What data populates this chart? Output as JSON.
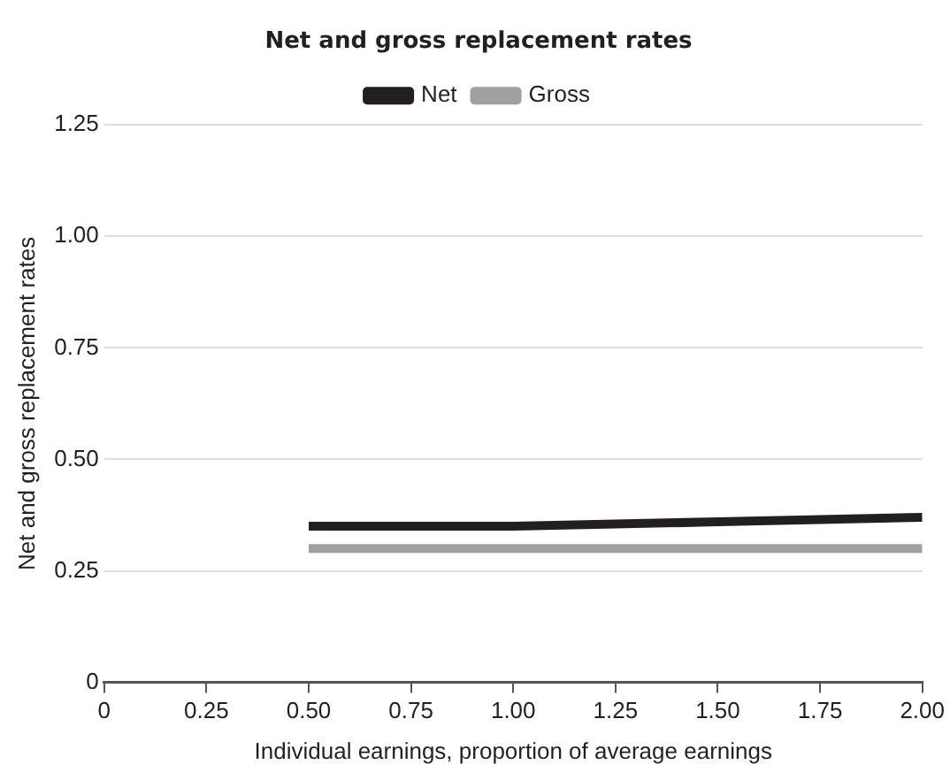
{
  "chart_data": {
    "type": "line",
    "title": "Net and gross replacement rates",
    "xlabel": "Individual earnings, proportion of average earnings",
    "ylabel": "Net and gross replacement rates",
    "x": [
      0.5,
      0.75,
      1,
      1.25,
      1.5,
      1.75,
      2
    ],
    "series": [
      {
        "name": "Net",
        "color": "#231f20",
        "values": [
          0.35,
          0.35,
          0.35,
          0.355,
          0.36,
          0.365,
          0.37
        ]
      },
      {
        "name": "Gross",
        "color": "#a0a0a0",
        "values": [
          0.3,
          0.3,
          0.3,
          0.3,
          0.3,
          0.3,
          0.3
        ]
      }
    ],
    "xlim": [
      0,
      2
    ],
    "xticks": [
      0,
      0.25,
      {
        "value": 0.5,
        "label": "0.50"
      },
      0.75,
      {
        "value": 1,
        "label": "1.00"
      },
      1.25,
      {
        "value": 1.5,
        "label": "1.50"
      },
      1.75,
      {
        "value": 2,
        "label": "2.00"
      }
    ],
    "ylim": [
      0,
      1.25
    ],
    "yticks": [
      0,
      0.25,
      {
        "value": 0.5,
        "label": "0.50"
      },
      0.75,
      {
        "value": 1,
        "label": "1.00"
      },
      1.25
    ],
    "grid": "y",
    "legend": "top",
    "marker": "none",
    "line_style": "solid"
  }
}
